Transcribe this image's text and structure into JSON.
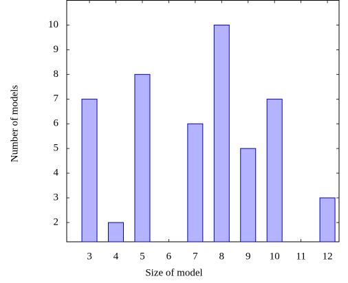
{
  "chart_data": {
    "type": "bar",
    "x_label": "Size of model",
    "y_label": "Number of models",
    "x": [
      3,
      4,
      5,
      6,
      7,
      8,
      9,
      10,
      11,
      12
    ],
    "values": [
      7,
      2,
      8,
      null,
      6,
      10,
      5,
      7,
      null,
      3
    ],
    "color": "#b3b3ff",
    "edge_color": "#0000cc",
    "xlim": [
      2.14,
      12.44
    ],
    "ylim": [
      1.22,
      11
    ],
    "xticks": [
      3,
      4,
      5,
      6,
      7,
      8,
      9,
      10,
      11,
      12
    ],
    "yticks": [
      2,
      3,
      4,
      5,
      6,
      7,
      8,
      9,
      10
    ]
  }
}
